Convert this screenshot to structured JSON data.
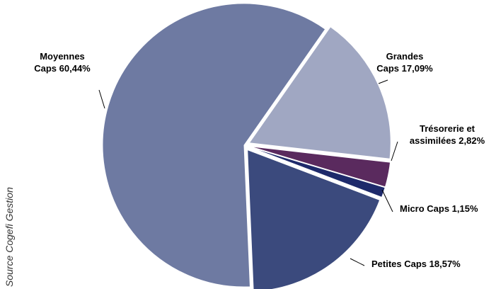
{
  "chart_data": {
    "type": "pie",
    "source_note": "Source Cogefi Gestion",
    "slices": [
      {
        "name": "Grandes Caps",
        "value": 17.09,
        "label_lines": [
          "Grandes",
          "Caps 17,09%"
        ],
        "color": "#a0a7c2"
      },
      {
        "name": "Trésorerie et assimilées",
        "value": 2.82,
        "label_lines": [
          "Trésorerie et",
          "assimilées 2,82%"
        ],
        "color": "#5a2a5e"
      },
      {
        "name": "Micro Caps",
        "value": 1.15,
        "label_lines": [
          "Micro Caps 1,15%"
        ],
        "color": "#1e2a6b"
      },
      {
        "name": "Petites Caps",
        "value": 18.57,
        "label_lines": [
          "Petites Caps 18,57%"
        ],
        "color": "#3b4a7d"
      },
      {
        "name": "Moyennes Caps",
        "value": 60.44,
        "label_lines": [
          "Moyennes",
          "Caps 60,44%"
        ],
        "color": "#6e7aa2"
      }
    ]
  }
}
